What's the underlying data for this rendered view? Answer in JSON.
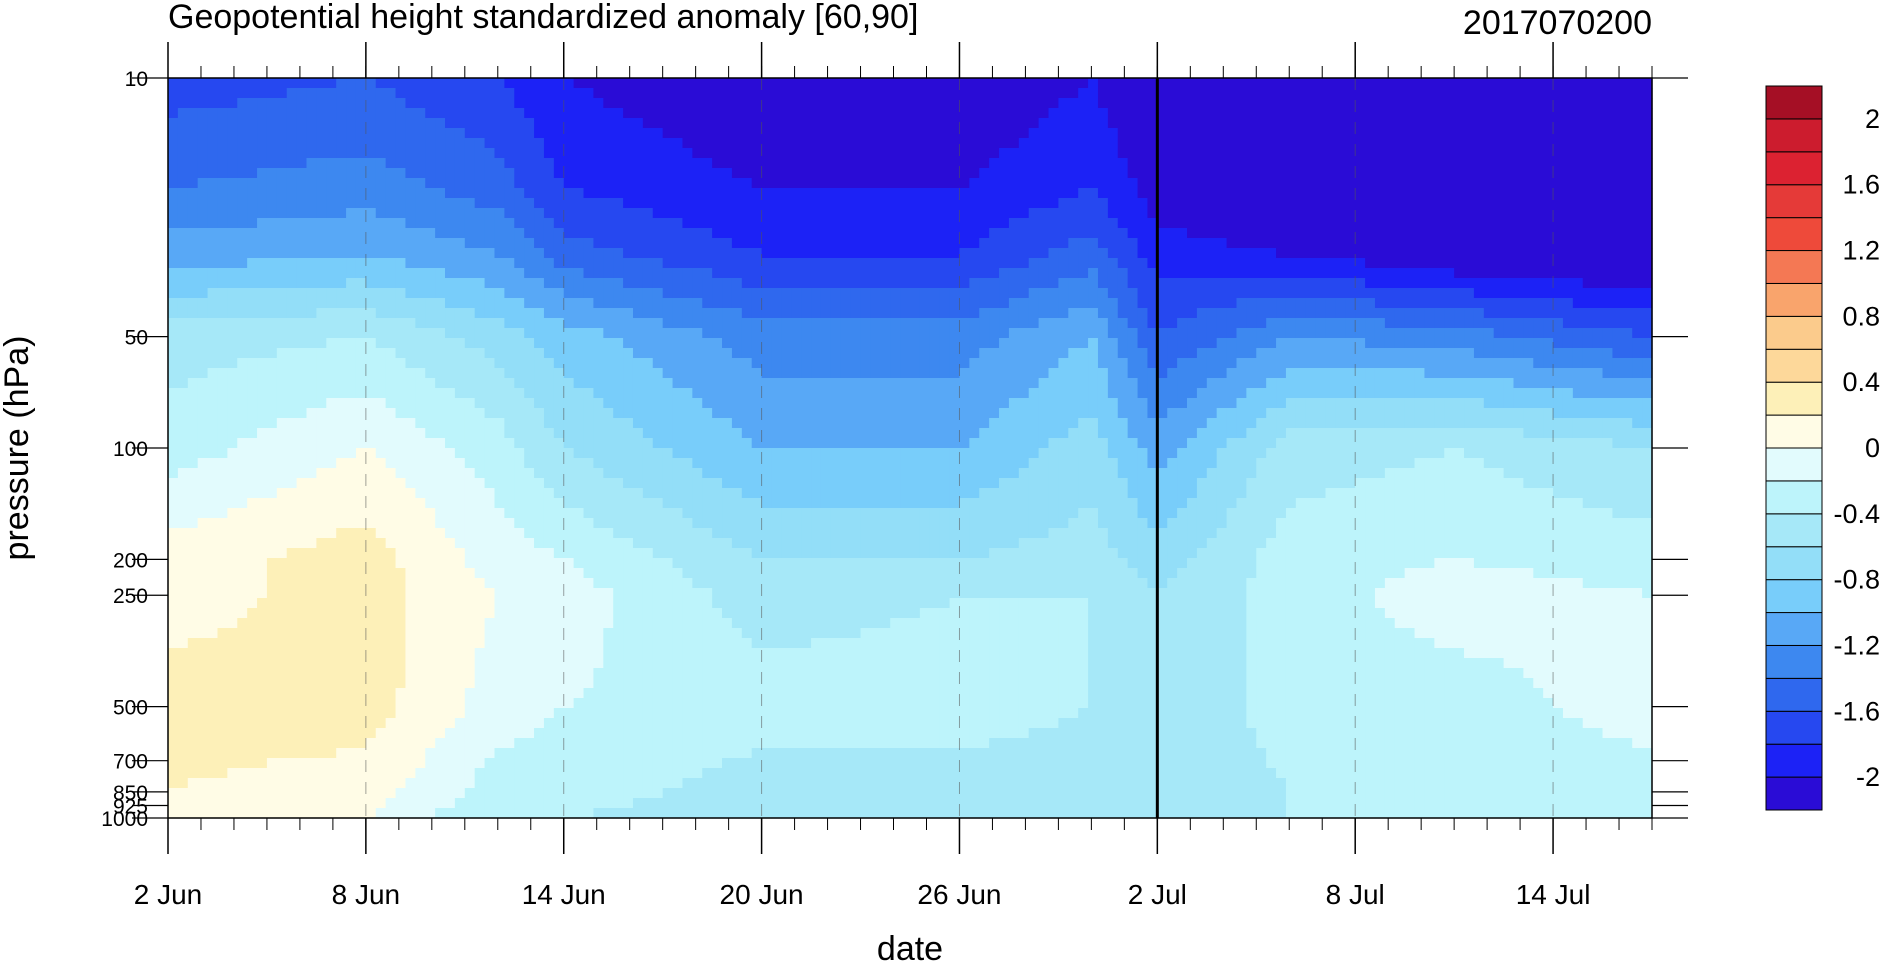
{
  "chart_data": {
    "type": "heatmap",
    "subtype": "filled-contour",
    "title": "Geopotential height standardized anomaly [60,90]",
    "title_right": "2017070200",
    "xlabel": "date",
    "ylabel": "pressure (hPa)",
    "y_scale": "log",
    "y_reversed": true,
    "ylim": [
      1000,
      10
    ],
    "xlim": [
      "2017-06-02",
      "2017-07-17"
    ],
    "x_ticks": [
      {
        "date": "2017-06-02",
        "label": "2 Jun"
      },
      {
        "date": "2017-06-08",
        "label": "8 Jun"
      },
      {
        "date": "2017-06-14",
        "label": "14 Jun"
      },
      {
        "date": "2017-06-20",
        "label": "20 Jun"
      },
      {
        "date": "2017-06-26",
        "label": "26 Jun"
      },
      {
        "date": "2017-07-02",
        "label": "2 Jul"
      },
      {
        "date": "2017-07-08",
        "label": "8 Jul"
      },
      {
        "date": "2017-07-14",
        "label": "14 Jul"
      }
    ],
    "y_ticks": [
      {
        "value": 10,
        "label": "10"
      },
      {
        "value": 50,
        "label": "50"
      },
      {
        "value": 100,
        "label": "100"
      },
      {
        "value": 200,
        "label": "200"
      },
      {
        "value": 250,
        "label": "250"
      },
      {
        "value": 500,
        "label": "500"
      },
      {
        "value": 700,
        "label": "700"
      },
      {
        "value": 850,
        "label": "850"
      },
      {
        "value": 925,
        "label": "925"
      },
      {
        "value": 1000,
        "label": "1000"
      }
    ],
    "current_date_line": "2017-07-02",
    "grid": "dashed vertical lines at date ticks",
    "colorbar": {
      "placement": "right",
      "levels": [
        -2.2,
        -2.0,
        -1.8,
        -1.6,
        -1.4,
        -1.2,
        -1.0,
        -0.8,
        -0.6,
        -0.4,
        -0.2,
        0.0,
        0.2,
        0.4,
        0.6,
        0.8,
        1.0,
        1.2,
        1.4,
        1.6,
        1.8,
        2.0
      ],
      "labels": [
        "-2",
        "-1.6",
        "-1.2",
        "-0.8",
        "-0.4",
        "0",
        "0.4",
        "0.8",
        "1.2",
        "1.6",
        "2"
      ],
      "colors": [
        "#2a0cd6",
        "#1c22f6",
        "#2648f0",
        "#2f68ee",
        "#3d88f0",
        "#58a8f6",
        "#78cdfa",
        "#93def8",
        "#a6e8f8",
        "#bdf4fb",
        "#e2fbfd",
        "#fffce6",
        "#fdf0b8",
        "#fdd89a",
        "#fbcb8c",
        "#f9a46c",
        "#f47854",
        "#ee4a3a",
        "#e53a38",
        "#dc2231",
        "#cc1c2e",
        "#a50f25"
      ]
    },
    "field": {
      "dates": [
        "2017-06-02",
        "2017-06-08",
        "2017-06-12",
        "2017-06-14",
        "2017-06-20",
        "2017-06-26",
        "2017-06-30",
        "2017-07-02",
        "2017-07-06",
        "2017-07-11",
        "2017-07-17"
      ],
      "pressure": [
        10,
        20,
        30,
        50,
        100,
        200,
        250,
        500,
        850,
        1000
      ],
      "values": [
        [
          -1.7,
          -1.6,
          -1.8,
          -2.0,
          -2.2,
          -2.2,
          -2.0,
          -2.3,
          -2.3,
          -2.3,
          -2.3
        ],
        [
          -1.4,
          -1.3,
          -1.5,
          -1.8,
          -2.0,
          -2.0,
          -1.8,
          -2.1,
          -2.3,
          -2.3,
          -2.3
        ],
        [
          -1.1,
          -1.0,
          -1.2,
          -1.5,
          -1.8,
          -1.8,
          -1.5,
          -1.9,
          -2.0,
          -2.2,
          -2.3
        ],
        [
          -0.5,
          -0.4,
          -0.7,
          -0.9,
          -1.3,
          -1.3,
          -1.0,
          -1.6,
          -1.2,
          -1.3,
          -1.6
        ],
        [
          -0.3,
          0.0,
          -0.3,
          -0.6,
          -1.0,
          -1.0,
          -0.7,
          -1.1,
          -0.5,
          -0.4,
          -0.6
        ],
        [
          0.1,
          0.3,
          -0.1,
          -0.2,
          -0.6,
          -0.6,
          -0.5,
          -0.7,
          -0.3,
          -0.2,
          -0.3
        ],
        [
          0.1,
          0.3,
          0.0,
          -0.1,
          -0.5,
          -0.4,
          -0.4,
          -0.6,
          -0.3,
          -0.1,
          -0.2
        ],
        [
          0.3,
          0.3,
          -0.1,
          -0.2,
          -0.3,
          -0.3,
          -0.4,
          -0.6,
          -0.3,
          -0.3,
          -0.1
        ],
        [
          0.2,
          0.1,
          -0.3,
          -0.3,
          -0.5,
          -0.5,
          -0.5,
          -0.6,
          -0.4,
          -0.4,
          -0.3
        ],
        [
          0.2,
          0.0,
          -0.4,
          -0.4,
          -0.5,
          -0.5,
          -0.5,
          -0.6,
          -0.4,
          -0.4,
          -0.3
        ]
      ]
    }
  }
}
